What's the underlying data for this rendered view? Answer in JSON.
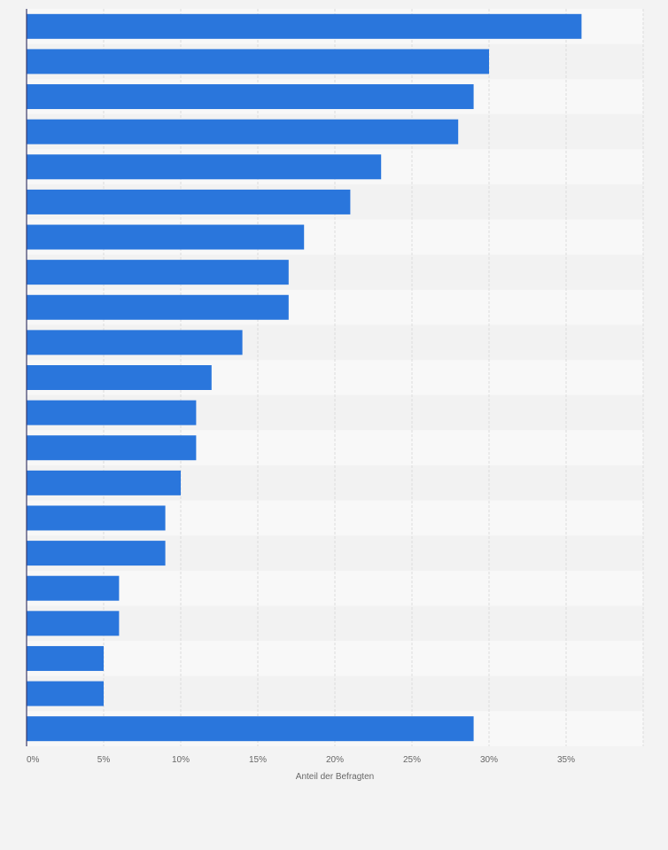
{
  "chart_data": {
    "type": "bar",
    "orientation": "horizontal",
    "title": "",
    "xlabel": "Anteil der Befragten",
    "ylabel": "",
    "x_tick_labels": [
      "0%",
      "5%",
      "10%",
      "15%",
      "20%",
      "25%",
      "30%",
      "35%"
    ],
    "xlim": [
      0,
      40
    ],
    "grid": true,
    "legend": "none",
    "series": [
      {
        "values": [
          36,
          30,
          29,
          28,
          23,
          21,
          18,
          17,
          17,
          14,
          12,
          11,
          11,
          10,
          9,
          9,
          6,
          6,
          5,
          5,
          29
        ]
      }
    ],
    "bar_color": "#2a76dc",
    "colors": {
      "background": "#f3f3f3",
      "band_light": "#f8f8f8",
      "band_dark": "#f2f2f2",
      "grid": "#dcdcdc",
      "axis": "#3a3a6a",
      "text": "#666666"
    }
  }
}
